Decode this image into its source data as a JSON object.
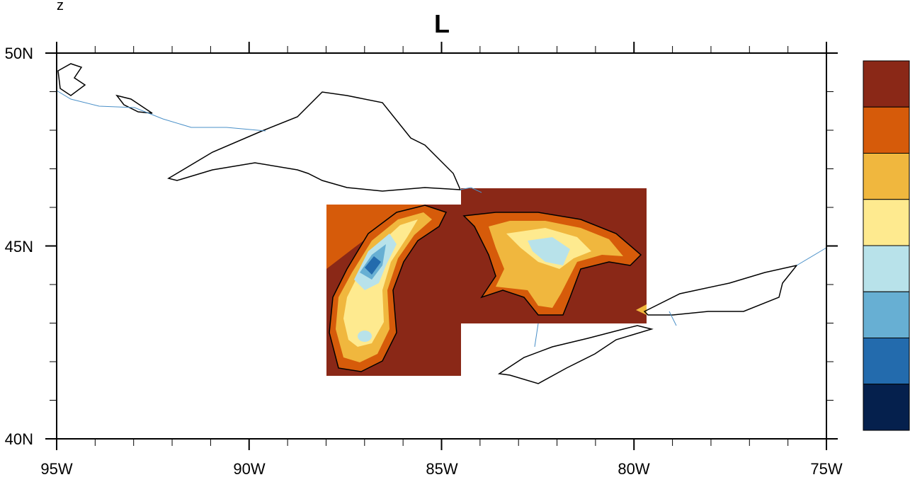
{
  "title": "L",
  "left_label": "z",
  "x_axis": {
    "ticks": [
      "95W",
      "90W",
      "85W",
      "80W",
      "75W"
    ],
    "range_deg_lon": [
      -95,
      -75
    ]
  },
  "y_axis": {
    "ticks": [
      "40N",
      "45N",
      "50N"
    ],
    "range_deg_lat": [
      40,
      50
    ]
  },
  "colorbar": {
    "orientation": "vertical",
    "labels_shown": false,
    "colors": [
      "#8a2817",
      "#d65b0a",
      "#f0b73e",
      "#feea8f",
      "#b8e2ea",
      "#67afd3",
      "#236bad",
      "#05204d"
    ]
  },
  "map": {
    "region": "Great Lakes",
    "coastline_color": "#000000",
    "boundary_color": "#4a90c8"
  }
}
